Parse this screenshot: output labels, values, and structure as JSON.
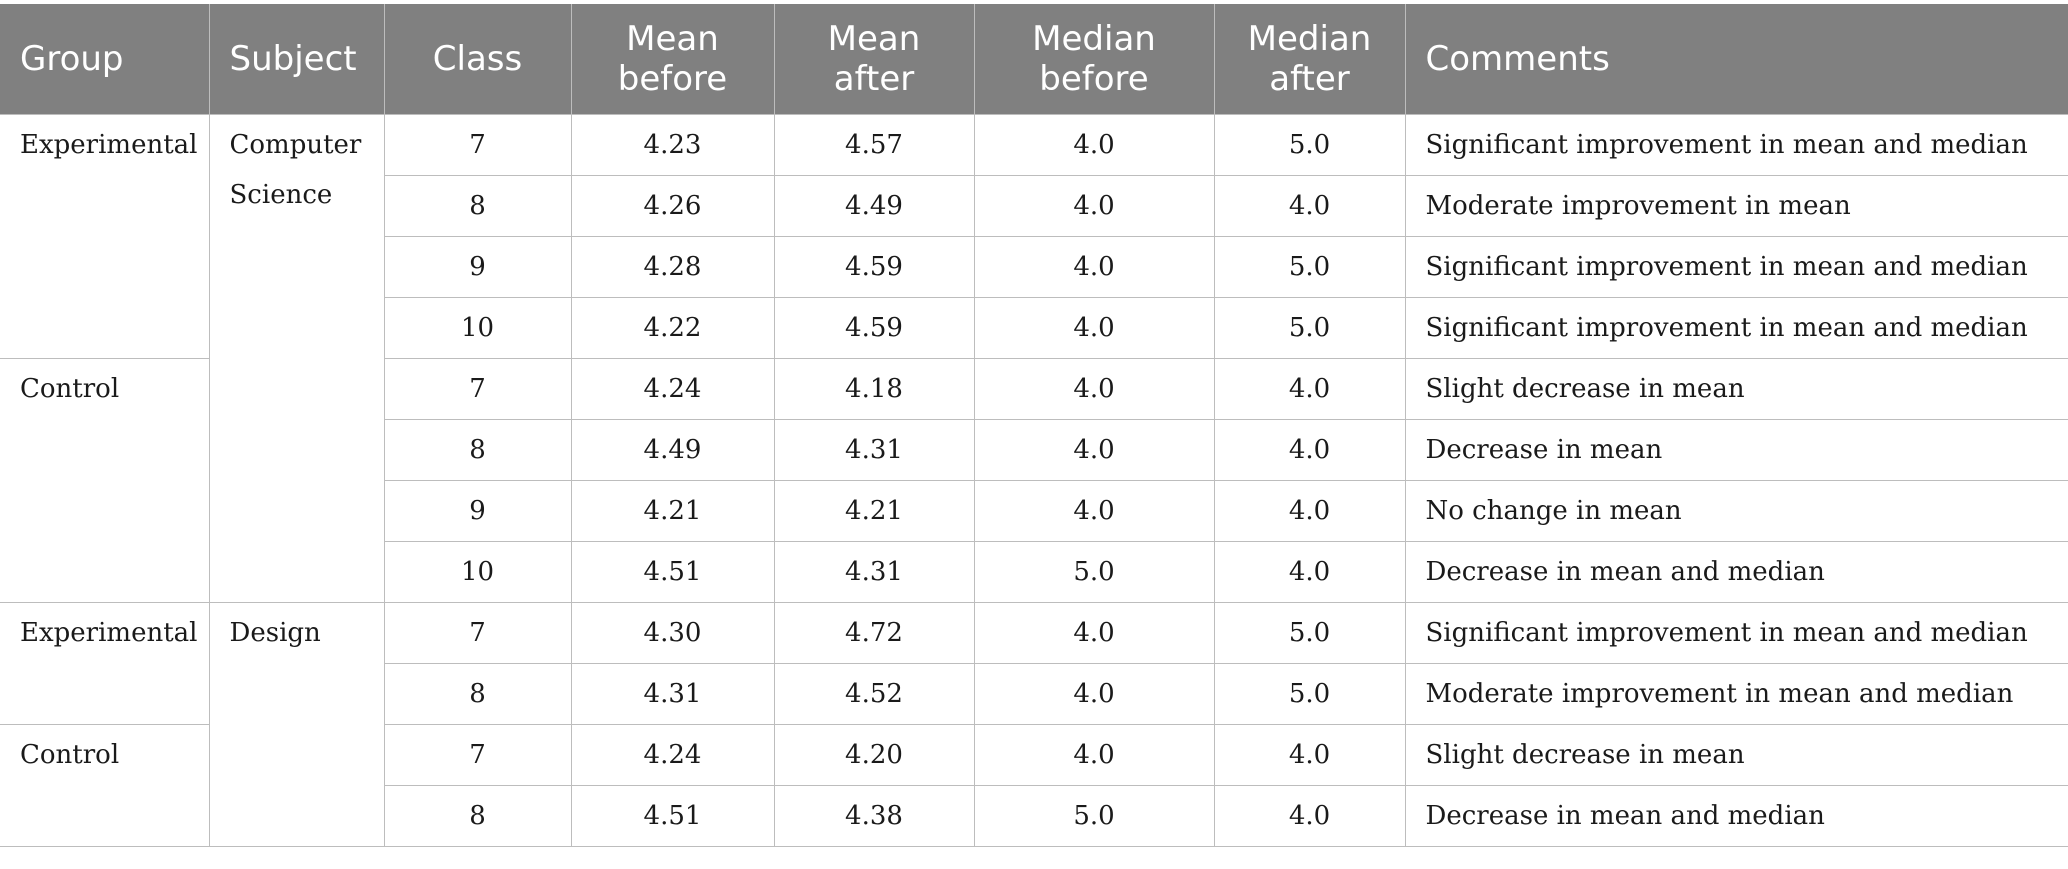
{
  "headers": {
    "group": "Group",
    "subject": "Subject",
    "class": "Class",
    "mean_before_1": "Mean",
    "mean_before_2": "before",
    "mean_after_1": "Mean",
    "mean_after_2": "after",
    "median_before_1": "Median",
    "median_before_2": "before",
    "median_after_1": "Median",
    "median_after_2": "after",
    "comments": "Comments"
  },
  "groups": {
    "cs_experimental": "Experimental",
    "cs_control": "Control",
    "design_experimental": "Experimental",
    "design_control": "Control"
  },
  "subjects": {
    "cs_line1": "Computer",
    "cs_line2": "Science",
    "design": "Design"
  },
  "rows": [
    {
      "class": "7",
      "mean_before": "4.23",
      "mean_after": "4.57",
      "median_before": "4.0",
      "median_after": "5.0",
      "comment": "Significant improvement in mean and median"
    },
    {
      "class": "8",
      "mean_before": "4.26",
      "mean_after": "4.49",
      "median_before": "4.0",
      "median_after": "4.0",
      "comment": "Moderate improvement in mean"
    },
    {
      "class": "9",
      "mean_before": "4.28",
      "mean_after": "4.59",
      "median_before": "4.0",
      "median_after": "5.0",
      "comment": "Significant improvement in mean and median"
    },
    {
      "class": "10",
      "mean_before": "4.22",
      "mean_after": "4.59",
      "median_before": "4.0",
      "median_after": "5.0",
      "comment": "Significant improvement in mean and median"
    },
    {
      "class": "7",
      "mean_before": "4.24",
      "mean_after": "4.18",
      "median_before": "4.0",
      "median_after": "4.0",
      "comment": "Slight decrease in mean"
    },
    {
      "class": "8",
      "mean_before": "4.49",
      "mean_after": "4.31",
      "median_before": "4.0",
      "median_after": "4.0",
      "comment": "Decrease in mean"
    },
    {
      "class": "9",
      "mean_before": "4.21",
      "mean_after": "4.21",
      "median_before": "4.0",
      "median_after": "4.0",
      "comment": "No change in mean"
    },
    {
      "class": "10",
      "mean_before": "4.51",
      "mean_after": "4.31",
      "median_before": "5.0",
      "median_after": "4.0",
      "comment": "Decrease in mean and median"
    },
    {
      "class": "7",
      "mean_before": "4.30",
      "mean_after": "4.72",
      "median_before": "4.0",
      "median_after": "5.0",
      "comment": "Significant improvement in mean and median"
    },
    {
      "class": "8",
      "mean_before": "4.31",
      "mean_after": "4.52",
      "median_before": "4.0",
      "median_after": "5.0",
      "comment": "Moderate improvement in mean and median"
    },
    {
      "class": "7",
      "mean_before": "4.24",
      "mean_after": "4.20",
      "median_before": "4.0",
      "median_after": "4.0",
      "comment": "Slight decrease in mean"
    },
    {
      "class": "8",
      "mean_before": "4.51",
      "mean_after": "4.38",
      "median_before": "5.0",
      "median_after": "4.0",
      "comment": "Decrease in mean and median"
    }
  ]
}
